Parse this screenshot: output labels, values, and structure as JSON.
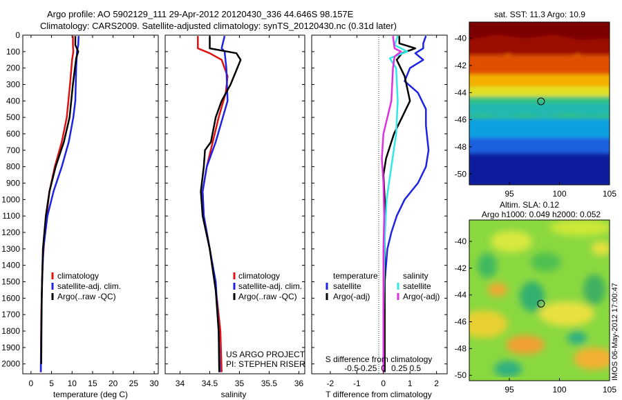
{
  "header": {
    "line1": "Argo profile: AO 5902129_111 29-Apr-2012 20120430_336 44.646S 98.157E",
    "line2": "Climatology: CARS2009. Satellite-adjusted climatology: synTS_20120430.nc (0.31d later)"
  },
  "colors": {
    "climatology": "#e01010",
    "satellite": "#1c22e6",
    "argo": "#000000",
    "sat_s": "#30e8e8",
    "argo_s": "#e030e0"
  },
  "chart_data": [
    {
      "type": "line",
      "xlabel": "temperature (deg C)",
      "xlim": [
        -2,
        31
      ],
      "xticks": [
        0,
        5,
        10,
        15,
        20,
        25,
        30
      ],
      "ylim": [
        2060,
        0
      ],
      "yticks": [
        0,
        100,
        200,
        300,
        400,
        500,
        600,
        700,
        800,
        900,
        1000,
        1100,
        1200,
        1300,
        1400,
        1500,
        1600,
        1700,
        1800,
        1900,
        2000
      ],
      "legend": [
        "climatology",
        "satellite-adj. clim.",
        "Argo(..raw -QC)"
      ],
      "series": [
        {
          "key": "climatology",
          "color": "#e01010",
          "points": [
            [
              10.2,
              5
            ],
            [
              10.2,
              60
            ],
            [
              10.3,
              100
            ],
            [
              10.0,
              150
            ],
            [
              9.5,
              300
            ],
            [
              8.7,
              500
            ],
            [
              7.5,
              650
            ],
            [
              5.8,
              800
            ],
            [
              4.5,
              950
            ],
            [
              3.5,
              1150
            ],
            [
              2.8,
              1400
            ],
            [
              2.5,
              1700
            ],
            [
              2.4,
              2000
            ],
            [
              2.4,
              2050
            ]
          ]
        },
        {
          "key": "satellite",
          "color": "#1c22e6",
          "points": [
            [
              11.6,
              5
            ],
            [
              11.5,
              60
            ],
            [
              11.2,
              100
            ],
            [
              11.0,
              200
            ],
            [
              10.8,
              400
            ],
            [
              10.3,
              500
            ],
            [
              9.2,
              650
            ],
            [
              7.5,
              800
            ],
            [
              5.5,
              950
            ],
            [
              4.0,
              1100
            ],
            [
              3.0,
              1300
            ],
            [
              2.7,
              1500
            ],
            [
              2.5,
              1800
            ],
            [
              2.4,
              2050
            ]
          ]
        },
        {
          "key": "argo",
          "color": "#000000",
          "points": [
            [
              10.8,
              5
            ],
            [
              10.8,
              60
            ],
            [
              11.5,
              100
            ],
            [
              11.0,
              140
            ],
            [
              10.2,
              300
            ],
            [
              9.4,
              500
            ],
            [
              8.0,
              650
            ],
            [
              6.0,
              800
            ],
            [
              4.5,
              950
            ],
            [
              3.6,
              1100
            ],
            [
              2.9,
              1300
            ],
            [
              2.6,
              1600
            ],
            [
              2.5,
              2000
            ]
          ]
        }
      ]
    },
    {
      "type": "line",
      "xlabel": "salinity",
      "xlim": [
        33.75,
        36.1
      ],
      "xticks": [
        34,
        34.5,
        35,
        35.5,
        36
      ],
      "ylim": [
        2060,
        0
      ],
      "legend": [
        "climatology",
        "satellite-adj. clim.",
        "Argo(..raw -QC)"
      ],
      "annotation": [
        "US ARGO PROJECT",
        "PI: STEPHEN RISER"
      ],
      "series": [
        {
          "key": "climatology",
          "color": "#e01010",
          "points": [
            [
              34.3,
              5
            ],
            [
              34.3,
              80
            ],
            [
              34.5,
              110
            ],
            [
              34.7,
              150
            ],
            [
              34.8,
              250
            ],
            [
              34.77,
              350
            ],
            [
              34.65,
              500
            ],
            [
              34.55,
              650
            ],
            [
              34.45,
              800
            ],
            [
              34.38,
              950
            ],
            [
              34.4,
              1100
            ],
            [
              34.5,
              1300
            ],
            [
              34.62,
              1600
            ],
            [
              34.68,
              1800
            ],
            [
              34.7,
              2050
            ]
          ]
        },
        {
          "key": "satellite",
          "color": "#1c22e6",
          "points": [
            [
              34.75,
              5
            ],
            [
              34.7,
              80
            ],
            [
              34.75,
              100
            ],
            [
              34.78,
              200
            ],
            [
              34.8,
              400
            ],
            [
              34.72,
              500
            ],
            [
              34.6,
              650
            ],
            [
              34.45,
              800
            ],
            [
              34.38,
              950
            ],
            [
              34.4,
              1100
            ],
            [
              34.5,
              1300
            ],
            [
              34.6,
              1500
            ],
            [
              34.65,
              1800
            ],
            [
              34.67,
              2050
            ]
          ]
        },
        {
          "key": "argo",
          "color": "#000000",
          "points": [
            [
              34.5,
              5
            ],
            [
              34.5,
              80
            ],
            [
              34.95,
              110
            ],
            [
              35.02,
              150
            ],
            [
              34.85,
              300
            ],
            [
              34.7,
              400
            ],
            [
              34.6,
              500
            ],
            [
              34.52,
              650
            ],
            [
              34.42,
              700
            ],
            [
              34.4,
              800
            ],
            [
              34.35,
              950
            ],
            [
              34.38,
              1100
            ],
            [
              34.5,
              1300
            ],
            [
              34.6,
              1550
            ],
            [
              34.65,
              1800
            ],
            [
              34.66,
              2050
            ]
          ]
        }
      ]
    },
    {
      "type": "line",
      "xlabel": "T difference from climatology",
      "xlim": [
        -2.7,
        2.4
      ],
      "xticks": [
        -2,
        -1,
        0,
        1,
        2
      ],
      "sticks": [
        -0.5,
        -0.25,
        0,
        0.25,
        0.5
      ],
      "slabel": "S difference from climatology",
      "ylim": [
        2060,
        0
      ],
      "legend_t_title": "temperature",
      "legend_s_title": "salinity",
      "legend_t": [
        "satellite",
        "Argo(-adj)"
      ],
      "legend_s": [
        "satellite",
        "Argo(-adj)"
      ],
      "series": [
        {
          "key": "sat_t",
          "color": "#1c22e6",
          "points": [
            [
              1.6,
              5
            ],
            [
              1.5,
              50
            ],
            [
              1.5,
              80
            ],
            [
              1.2,
              110
            ],
            [
              1.5,
              150
            ],
            [
              1.0,
              200
            ],
            [
              0.8,
              280
            ],
            [
              1.3,
              350
            ],
            [
              1.6,
              450
            ],
            [
              1.6,
              550
            ],
            [
              1.7,
              700
            ],
            [
              1.6,
              800
            ],
            [
              1.3,
              900
            ],
            [
              0.8,
              1000
            ],
            [
              0.5,
              1100
            ],
            [
              0.3,
              1200
            ],
            [
              0.15,
              1300
            ],
            [
              0.05,
              1500
            ],
            [
              0,
              1700
            ],
            [
              0,
              2050
            ]
          ]
        },
        {
          "key": "argo_t",
          "color": "#000000",
          "points": [
            [
              0.6,
              5
            ],
            [
              0.6,
              50
            ],
            [
              1.2,
              80
            ],
            [
              0.7,
              110
            ],
            [
              0.5,
              150
            ],
            [
              0.8,
              250
            ],
            [
              1.0,
              400
            ],
            [
              0.7,
              500
            ],
            [
              0.4,
              600
            ],
            [
              0.1,
              750
            ],
            [
              0.0,
              850
            ],
            [
              0.05,
              1000
            ],
            [
              0.05,
              1200
            ],
            [
              0.05,
              1500
            ],
            [
              0.05,
              2050
            ]
          ]
        },
        {
          "key": "sat_s",
          "color": "#30e8e8",
          "points": [
            [
              0.9,
              5
            ],
            [
              0.7,
              60
            ],
            [
              1.5,
              100
            ],
            [
              0.4,
              140
            ],
            [
              0.8,
              200
            ],
            [
              0.9,
              400
            ],
            [
              0.8,
              600
            ],
            [
              0.5,
              800
            ],
            [
              0.2,
              1000
            ],
            [
              0.1,
              1200
            ],
            [
              0.05,
              1400
            ],
            [
              0.0,
              1700
            ],
            [
              0.0,
              2050
            ]
          ]
        },
        {
          "key": "argo_s",
          "color": "#e030e0",
          "points": [
            [
              0.6,
              5
            ],
            [
              0.7,
              80
            ],
            [
              1.1,
              100
            ],
            [
              0.7,
              130
            ],
            [
              0.6,
              200
            ],
            [
              0.5,
              400
            ],
            [
              0.0,
              600
            ],
            [
              -0.1,
              750
            ],
            [
              0.0,
              900
            ],
            [
              0.05,
              1100
            ],
            [
              0.0,
              1300
            ],
            [
              0.0,
              1600
            ],
            [
              0.0,
              2050
            ]
          ]
        }
      ]
    },
    {
      "type": "heatmap",
      "title": "sat. SST: 11.3 Argo: 10.9",
      "xlim": [
        91,
        105
      ],
      "ylim": [
        -50.8,
        -38.8
      ],
      "xticks": [
        95,
        100,
        105
      ],
      "yticks": [
        -40,
        -42,
        -44,
        -46,
        -48,
        -50
      ],
      "marker": [
        98.157,
        -44.646
      ]
    },
    {
      "type": "heatmap",
      "title": "Altim. SLA: 0.12",
      "subtitle": "Argo h1000: 0.049 h2000: 0.052",
      "xlim": [
        91,
        105
      ],
      "ylim": [
        -50.4,
        -38.4
      ],
      "xticks": [
        95,
        100,
        105
      ],
      "yticks": [
        -40,
        -42,
        -44,
        -46,
        -48,
        -50
      ],
      "marker": [
        98.157,
        -44.646
      ]
    }
  ],
  "side_text": "IMOS 06-May-2012 17:00:47"
}
